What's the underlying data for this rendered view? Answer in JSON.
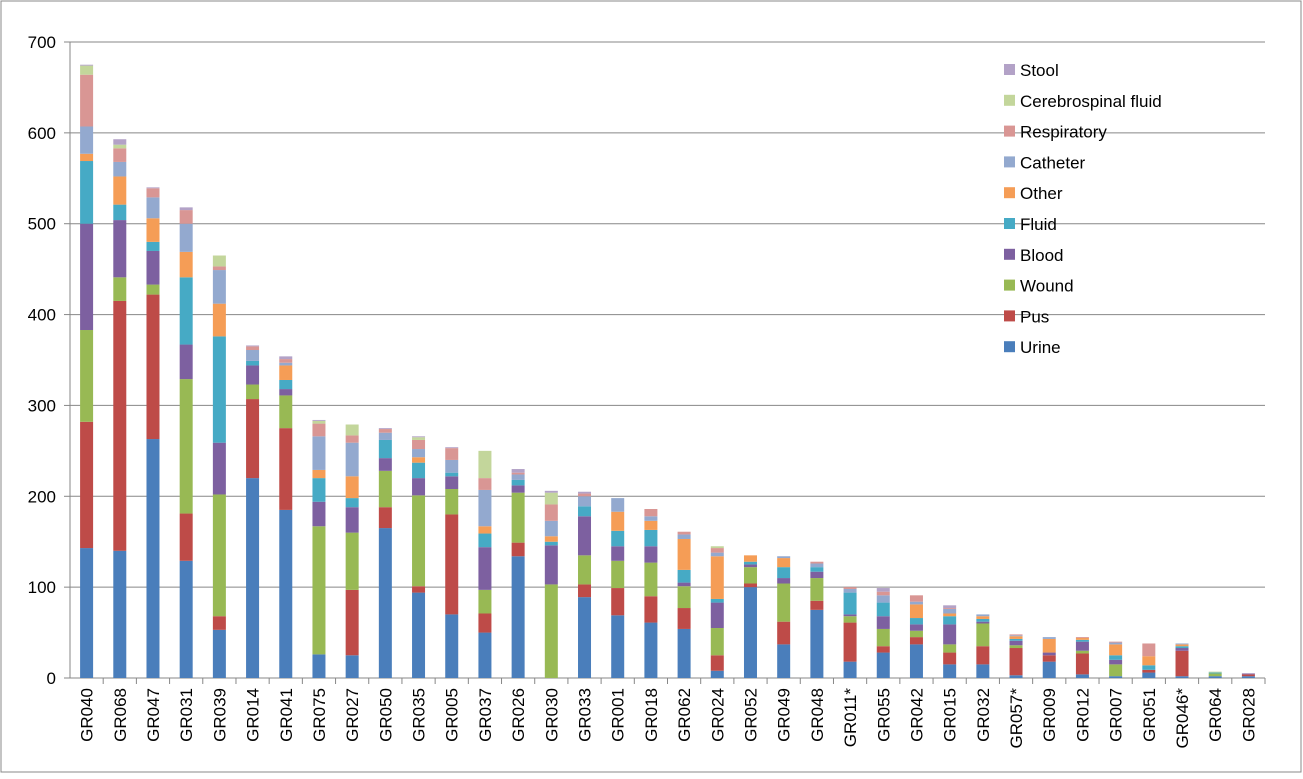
{
  "chart_data": {
    "type": "bar",
    "stacked": true,
    "title": "",
    "xlabel": "",
    "ylabel": "",
    "ylim": [
      0,
      700
    ],
    "yticks": [
      0,
      100,
      200,
      300,
      400,
      500,
      600,
      700
    ],
    "grid": true,
    "legend_position": "top-right",
    "categories": [
      "GR040",
      "GR068",
      "GR047",
      "GR031",
      "GR039",
      "GR014",
      "GR041",
      "GR075",
      "GR027",
      "GR050",
      "GR035",
      "GR005",
      "GR037",
      "GR026",
      "GR030",
      "GR033",
      "GR001",
      "GR018",
      "GR062",
      "GR024",
      "GR052",
      "GR049",
      "GR048",
      "GR011*",
      "GR055",
      "GR042",
      "GR015",
      "GR032",
      "GR057*",
      "GR009",
      "GR012",
      "GR007",
      "GR051",
      "GR046*",
      "GR064",
      "GR028"
    ],
    "series": [
      {
        "name": "Urine",
        "color": "#4a7ebb",
        "values": [
          143,
          140,
          263,
          129,
          53,
          220,
          185,
          26,
          25,
          165,
          94,
          70,
          50,
          134,
          0,
          89,
          69,
          61,
          54,
          8,
          100,
          37,
          75,
          18,
          28,
          37,
          15,
          15,
          3,
          18,
          4,
          2,
          6,
          2,
          2,
          2
        ]
      },
      {
        "name": "Pus",
        "color": "#be4b48",
        "values": [
          139,
          275,
          159,
          52,
          15,
          87,
          90,
          0,
          72,
          23,
          7,
          110,
          21,
          15,
          0,
          14,
          30,
          29,
          23,
          17,
          4,
          25,
          10,
          43,
          7,
          8,
          13,
          20,
          30,
          7,
          23,
          0,
          3,
          28,
          0,
          2
        ]
      },
      {
        "name": "Wound",
        "color": "#98b954",
        "values": [
          101,
          26,
          11,
          148,
          134,
          16,
          36,
          141,
          63,
          40,
          100,
          28,
          26,
          55,
          103,
          32,
          30,
          37,
          24,
          30,
          18,
          42,
          25,
          7,
          19,
          7,
          9,
          25,
          3,
          0,
          3,
          13,
          0,
          0,
          3,
          0
        ]
      },
      {
        "name": "Blood",
        "color": "#7d60a0",
        "values": [
          117,
          63,
          37,
          38,
          57,
          21,
          7,
          27,
          28,
          14,
          19,
          14,
          47,
          8,
          43,
          43,
          16,
          18,
          4,
          28,
          3,
          6,
          7,
          2,
          14,
          7,
          22,
          2,
          5,
          3,
          10,
          5,
          0,
          3,
          0,
          1
        ]
      },
      {
        "name": "Fluid",
        "color": "#46aac5",
        "values": [
          69,
          17,
          10,
          74,
          117,
          5,
          10,
          26,
          10,
          20,
          17,
          4,
          15,
          6,
          4,
          11,
          17,
          18,
          14,
          4,
          3,
          12,
          5,
          24,
          15,
          7,
          9,
          3,
          2,
          0,
          2,
          5,
          5,
          2,
          1,
          0
        ]
      },
      {
        "name": "Other",
        "color": "#f59d56",
        "values": [
          8,
          31,
          26,
          28,
          36,
          0,
          16,
          9,
          24,
          0,
          6,
          0,
          8,
          0,
          6,
          0,
          21,
          10,
          34,
          47,
          7,
          10,
          0,
          0,
          0,
          15,
          3,
          3,
          3,
          15,
          2,
          12,
          10,
          2,
          0,
          0
        ]
      },
      {
        "name": "Catheter",
        "color": "#93a9cf",
        "values": [
          30,
          16,
          23,
          31,
          37,
          12,
          3,
          37,
          37,
          8,
          9,
          14,
          40,
          6,
          17,
          11,
          15,
          5,
          5,
          4,
          0,
          2,
          4,
          4,
          8,
          3,
          5,
          2,
          1,
          2,
          0,
          2,
          0,
          1,
          0,
          0
        ]
      },
      {
        "name": "Respiratory",
        "color": "#d99694",
        "values": [
          57,
          15,
          10,
          15,
          4,
          4,
          4,
          14,
          8,
          4,
          10,
          13,
          13,
          2,
          18,
          3,
          0,
          8,
          3,
          5,
          0,
          0,
          2,
          2,
          4,
          7,
          1,
          0,
          1,
          0,
          1,
          1,
          14,
          0,
          0,
          0
        ]
      },
      {
        "name": "Cerebrospinal fluid",
        "color": "#c3d69b",
        "values": [
          10,
          4,
          0,
          0,
          12,
          0,
          0,
          3,
          12,
          0,
          3,
          0,
          30,
          0,
          13,
          0,
          0,
          0,
          0,
          2,
          0,
          0,
          0,
          0,
          0,
          0,
          0,
          0,
          0,
          0,
          0,
          0,
          0,
          0,
          1,
          0
        ]
      },
      {
        "name": "Stool",
        "color": "#b3a2c7",
        "values": [
          1,
          6,
          1,
          3,
          0,
          1,
          3,
          1,
          0,
          1,
          1,
          1,
          0,
          4,
          2,
          2,
          0,
          0,
          0,
          0,
          0,
          0,
          0,
          0,
          4,
          0,
          3,
          0,
          0,
          0,
          0,
          0,
          0,
          0,
          0,
          0
        ]
      }
    ]
  }
}
